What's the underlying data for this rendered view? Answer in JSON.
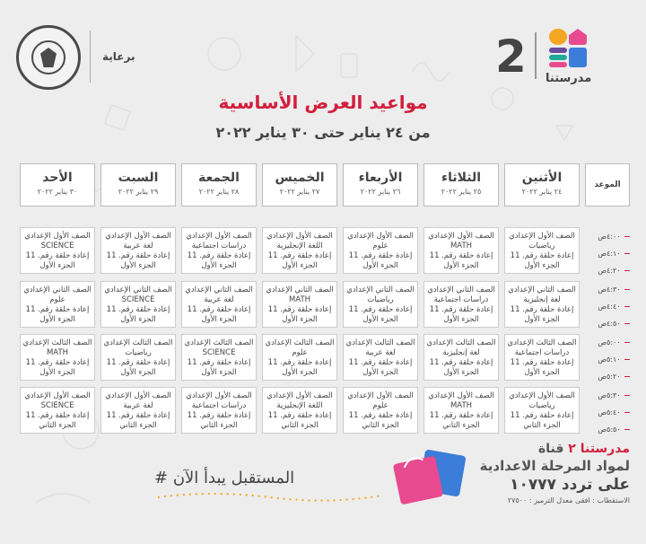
{
  "header": {
    "brand_number": "2",
    "brand_name": "مدرستنا",
    "sponsor_label": "برعاية",
    "title": "مواعيد العرض الأساسية",
    "subtitle": "من ٢٤ يناير حتى ٣٠ يناير ٢٠٢٢"
  },
  "colors": {
    "accent": "#d21f3c",
    "block_pink": "#e84a8f",
    "block_orange": "#f5a623",
    "block_teal": "#1fa99b",
    "block_purple": "#6a4c9c",
    "block_blue": "#3b7dd8"
  },
  "table": {
    "time_header": "الموعد",
    "days": [
      {
        "name": "الأثنين",
        "date": "٢٤ يناير ٢٠٢٢"
      },
      {
        "name": "الثلاثاء",
        "date": "٢٥ يناير ٢٠٢٢"
      },
      {
        "name": "الأربعاء",
        "date": "٢٦ يناير ٢٠٢٢"
      },
      {
        "name": "الخميس",
        "date": "٢٧ يناير ٢٠٢٢"
      },
      {
        "name": "الجمعة",
        "date": "٢٨ يناير ٢٠٢٢"
      },
      {
        "name": "السبت",
        "date": "٢٩ يناير ٢٠٢٢"
      },
      {
        "name": "الأحد",
        "date": "٣٠ يناير ٢٠٢٢"
      }
    ],
    "times": [
      "٤:٠٠ص",
      "٤:١٠ص",
      "٤:٢٠ص",
      "٤:٣٠ص",
      "٤:٤٠ص",
      "٤:٥٠ص",
      "٥:٠٠ص",
      "٥:١٠ص",
      "٥:٢٠ص",
      "٥:٣٠ص",
      "٥:٤٠ص",
      "٥:٥٠ص"
    ],
    "rows": [
      [
        [
          "الصف الأول الإعدادي",
          "رياضيات",
          "إعادة حلقة رقم. 11",
          "الجزء الأول"
        ],
        [
          "الصف الأول الإعدادي",
          "MATH",
          "إعادة حلقة رقم. 11",
          "الجزء الأول"
        ],
        [
          "الصف الأول الإعدادي",
          "علوم",
          "إعادة حلقة رقم. 11",
          "الجزء الأول"
        ],
        [
          "الصف الأول الإعدادي",
          "اللغة الإنجليزية",
          "إعادة حلقة رقم. 11",
          "الجزء الأول"
        ],
        [
          "الصف الأول الإعدادي",
          "دراسات اجتماعية",
          "إعادة حلقة رقم. 11",
          "الجزء الأول"
        ],
        [
          "الصف الأول الإعدادي",
          "لغة عربية",
          "إعادة حلقة رقم. 11",
          "الجزء الأول"
        ],
        [
          "الصف الأول الإعدادي",
          "SCIENCE",
          "إعادة حلقة رقم. 11",
          "الجزء الأول"
        ]
      ],
      [
        [
          "الصف الثاني الإعدادي",
          "لغة إنجليزية",
          "إعادة حلقة رقم. 11",
          "الجزء الأول"
        ],
        [
          "الصف الثاني الإعدادي",
          "دراسات اجتماعية",
          "إعادة حلقة رقم. 11",
          "الجزء الأول"
        ],
        [
          "الصف الثاني الإعدادي",
          "رياضيات",
          "إعادة حلقة رقم. 11",
          "الجزء الأول"
        ],
        [
          "الصف الثاني الإعدادي",
          "MATH",
          "إعادة حلقة رقم. 11",
          "الجزء الأول"
        ],
        [
          "الصف الثاني الإعدادي",
          "لغة عربية",
          "إعادة حلقة رقم. 11",
          "الجزء الأول"
        ],
        [
          "الصف الثاني الإعدادي",
          "SCIENCE",
          "إعادة حلقة رقم. 11",
          "الجزء الأول"
        ],
        [
          "الصف الثاني الإعدادي",
          "علوم",
          "إعادة حلقة رقم. 11",
          "الجزء الأول"
        ]
      ],
      [
        [
          "الصف الثالث الإعدادي",
          "دراسات اجتماعية",
          "إعادة حلقة رقم. 11",
          "الجزء الأول"
        ],
        [
          "الصف الثالث الإعدادي",
          "لغة إنجليزية",
          "إعادة حلقة رقم. 11",
          "الجزء الأول"
        ],
        [
          "الصف الثالث الإعدادي",
          "لغة عربية",
          "إعادة حلقة رقم. 11",
          "الجزء الأول"
        ],
        [
          "الصف الثالث الإعدادي",
          "علوم",
          "إعادة حلقة رقم. 11",
          "الجزء الأول"
        ],
        [
          "الصف الثالث الإعدادي",
          "SCIENCE",
          "إعادة حلقة رقم. 11",
          "الجزء الأول"
        ],
        [
          "الصف الثالث الإعدادي",
          "رياضيات",
          "إعادة حلقة رقم. 11",
          "الجزء الأول"
        ],
        [
          "الصف الثالث الإعدادي",
          "MATH",
          "إعادة حلقة رقم. 11",
          "الجزء الأول"
        ]
      ],
      [
        [
          "الصف الأول الإعدادي",
          "رياضيات",
          "إعادة حلقة رقم. 11",
          "الجزء الثاني"
        ],
        [
          "الصف الأول الإعدادي",
          "MATH",
          "إعادة حلقة رقم. 11",
          "الجزء الثاني"
        ],
        [
          "الصف الأول الإعدادي",
          "علوم",
          "إعادة حلقة رقم. 11",
          "الجزء الثاني"
        ],
        [
          "الصف الأول الإعدادي",
          "اللغة الإنجليزية",
          "إعادة حلقة رقم. 11",
          "الجزء الثاني"
        ],
        [
          "الصف الأول الإعدادي",
          "دراسات اجتماعية",
          "إعادة حلقة رقم. 11",
          "الجزء الثاني"
        ],
        [
          "الصف الأول الإعدادي",
          "لغة عربية",
          "إعادة حلقة رقم. 11",
          "الجزء الثاني"
        ],
        [
          "الصف الأول الإعدادي",
          "SCIENCE",
          "إعادة حلقة رقم. 11",
          "الجزء الثاني"
        ]
      ]
    ]
  },
  "footer": {
    "hashtag": "# المستقبل يبدأ الآن",
    "channel_prefix": "قناة",
    "channel_brand": "مدرستنا ٢",
    "channel_line2": "لمواد المرحلة الاعدادية",
    "channel_line3": "على تردد ١٠٧٧٧",
    "channel_line4": "الاستقطاب : افقى معدل الترميز : ٢٧٥٠٠"
  }
}
